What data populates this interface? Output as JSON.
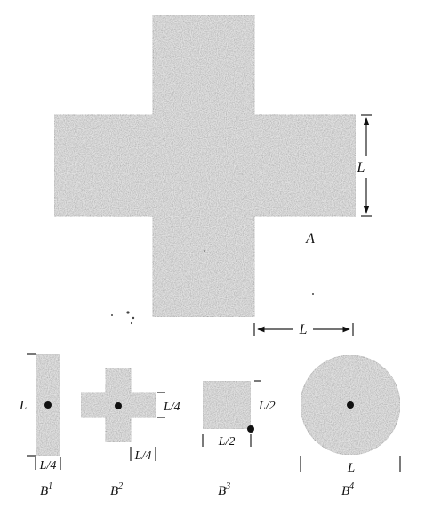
{
  "figure": {
    "shape_a": {
      "label": "A",
      "dim_label_vertical": "L",
      "dim_label_horizontal": "L"
    },
    "b1": {
      "label": "B",
      "superscript": "1",
      "dim_height": "L",
      "dim_width": "L/4"
    },
    "b2": {
      "label": "B",
      "superscript": "2",
      "dim_side": "L/4",
      "dim_bottom": "L/4"
    },
    "b3": {
      "label": "B",
      "superscript": "3",
      "dim_side": "L/2",
      "dim_bottom": "L/2"
    },
    "b4": {
      "label": "B",
      "superscript": "4",
      "dim_diameter": "L"
    }
  },
  "colors": {
    "fill": "#cfcfcf",
    "ink": "#111111",
    "outline": "#333333"
  }
}
